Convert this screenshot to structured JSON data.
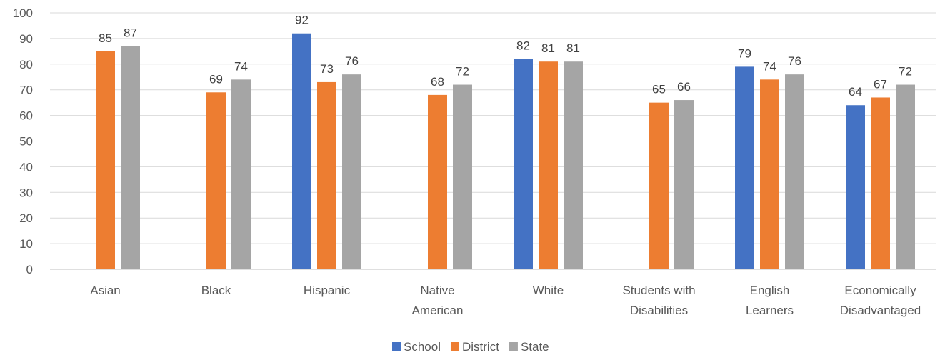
{
  "chart_data": {
    "type": "bar",
    "categories": [
      "Asian",
      "Black",
      "Hispanic",
      "Native American",
      "White",
      "Students with Disabilities",
      "English Learners",
      "Economically Disadvantaged"
    ],
    "category_lines": [
      [
        "Asian"
      ],
      [
        "Black"
      ],
      [
        "Hispanic"
      ],
      [
        "Native",
        "American"
      ],
      [
        "White"
      ],
      [
        "Students with",
        "Disabilities"
      ],
      [
        "English",
        "Learners"
      ],
      [
        "Economically",
        "Disadvantaged"
      ]
    ],
    "series": [
      {
        "name": "School",
        "color": "#4472C4",
        "values": [
          null,
          null,
          92,
          null,
          82,
          null,
          79,
          64
        ]
      },
      {
        "name": "District",
        "color": "#ED7D31",
        "values": [
          85,
          69,
          73,
          68,
          81,
          65,
          74,
          67
        ]
      },
      {
        "name": "State",
        "color": "#A5A5A5",
        "values": [
          87,
          74,
          76,
          72,
          81,
          66,
          76,
          72
        ]
      }
    ],
    "ylim": [
      0,
      100
    ],
    "yticks": [
      0,
      10,
      20,
      30,
      40,
      50,
      60,
      70,
      80,
      90,
      100
    ],
    "grid": true,
    "legend_position": "bottom",
    "title": "",
    "xlabel": "",
    "ylabel": ""
  }
}
